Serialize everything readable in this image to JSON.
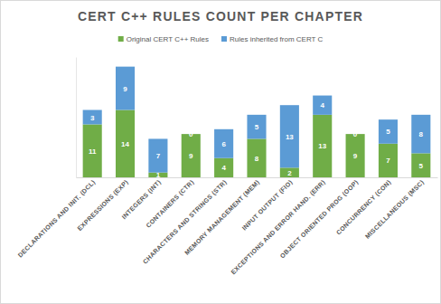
{
  "chart_data": {
    "type": "bar",
    "title": "CERT C++ RULES COUNT PER CHAPTER",
    "categories": [
      "DECLARATIONS AND INIT. (DCL)",
      "EXPRESSIONS (EXP)",
      "INTEGERS (INT)",
      "CONTAINERS (CTR)",
      "CHARACTERS AND STRINGS (STR)",
      "MEMORY MANAGEMENT (MEM)",
      "INPUT OUTPUT (FIO)",
      "EXCEPTIONS AND ERROR HAND. (ERR)",
      "OBJECT ORIENTED PROG (OOP)",
      "CONCURRENCY (CON)",
      "MISCELLANEOUS (MSC)"
    ],
    "series": [
      {
        "name": "Original CERT C++ Rules",
        "color": "#70ad47",
        "values": [
          11,
          14,
          1,
          9,
          4,
          8,
          2,
          13,
          9,
          7,
          5
        ]
      },
      {
        "name": "Rules inherited from CERT C",
        "color": "#5b9bd5",
        "values": [
          3,
          9,
          7,
          0,
          6,
          5,
          13,
          4,
          0,
          5,
          8
        ]
      }
    ],
    "ylim": [
      0,
      25
    ],
    "stacked": true,
    "data_labels": true,
    "tick_labels": "x",
    "legend": "top",
    "grid": false
  }
}
